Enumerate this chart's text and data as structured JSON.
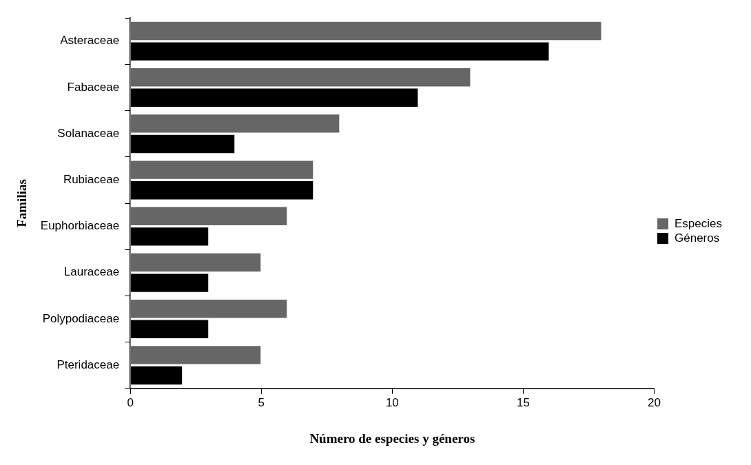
{
  "chart_data": {
    "type": "bar",
    "orientation": "horizontal",
    "xlabel": "Número de especies y géneros",
    "ylabel": "Familias",
    "categories": [
      "Asteraceae",
      "Fabaceae",
      "Solanaceae",
      "Rubiaceae",
      "Euphorbiaceae",
      "Lauraceae",
      "Polypodiaceae",
      "Pteridaceae"
    ],
    "series": [
      {
        "name": "Especies",
        "color": "#666666",
        "values": [
          18,
          13,
          8,
          7,
          6,
          5,
          6,
          5
        ]
      },
      {
        "name": "Géneros",
        "color": "#000000",
        "values": [
          16,
          11,
          4,
          7,
          3,
          3,
          3,
          2
        ]
      }
    ],
    "xlim": [
      0,
      20
    ],
    "xticks": [
      0,
      5,
      10,
      15,
      20
    ],
    "grid": false,
    "legend": "right"
  }
}
